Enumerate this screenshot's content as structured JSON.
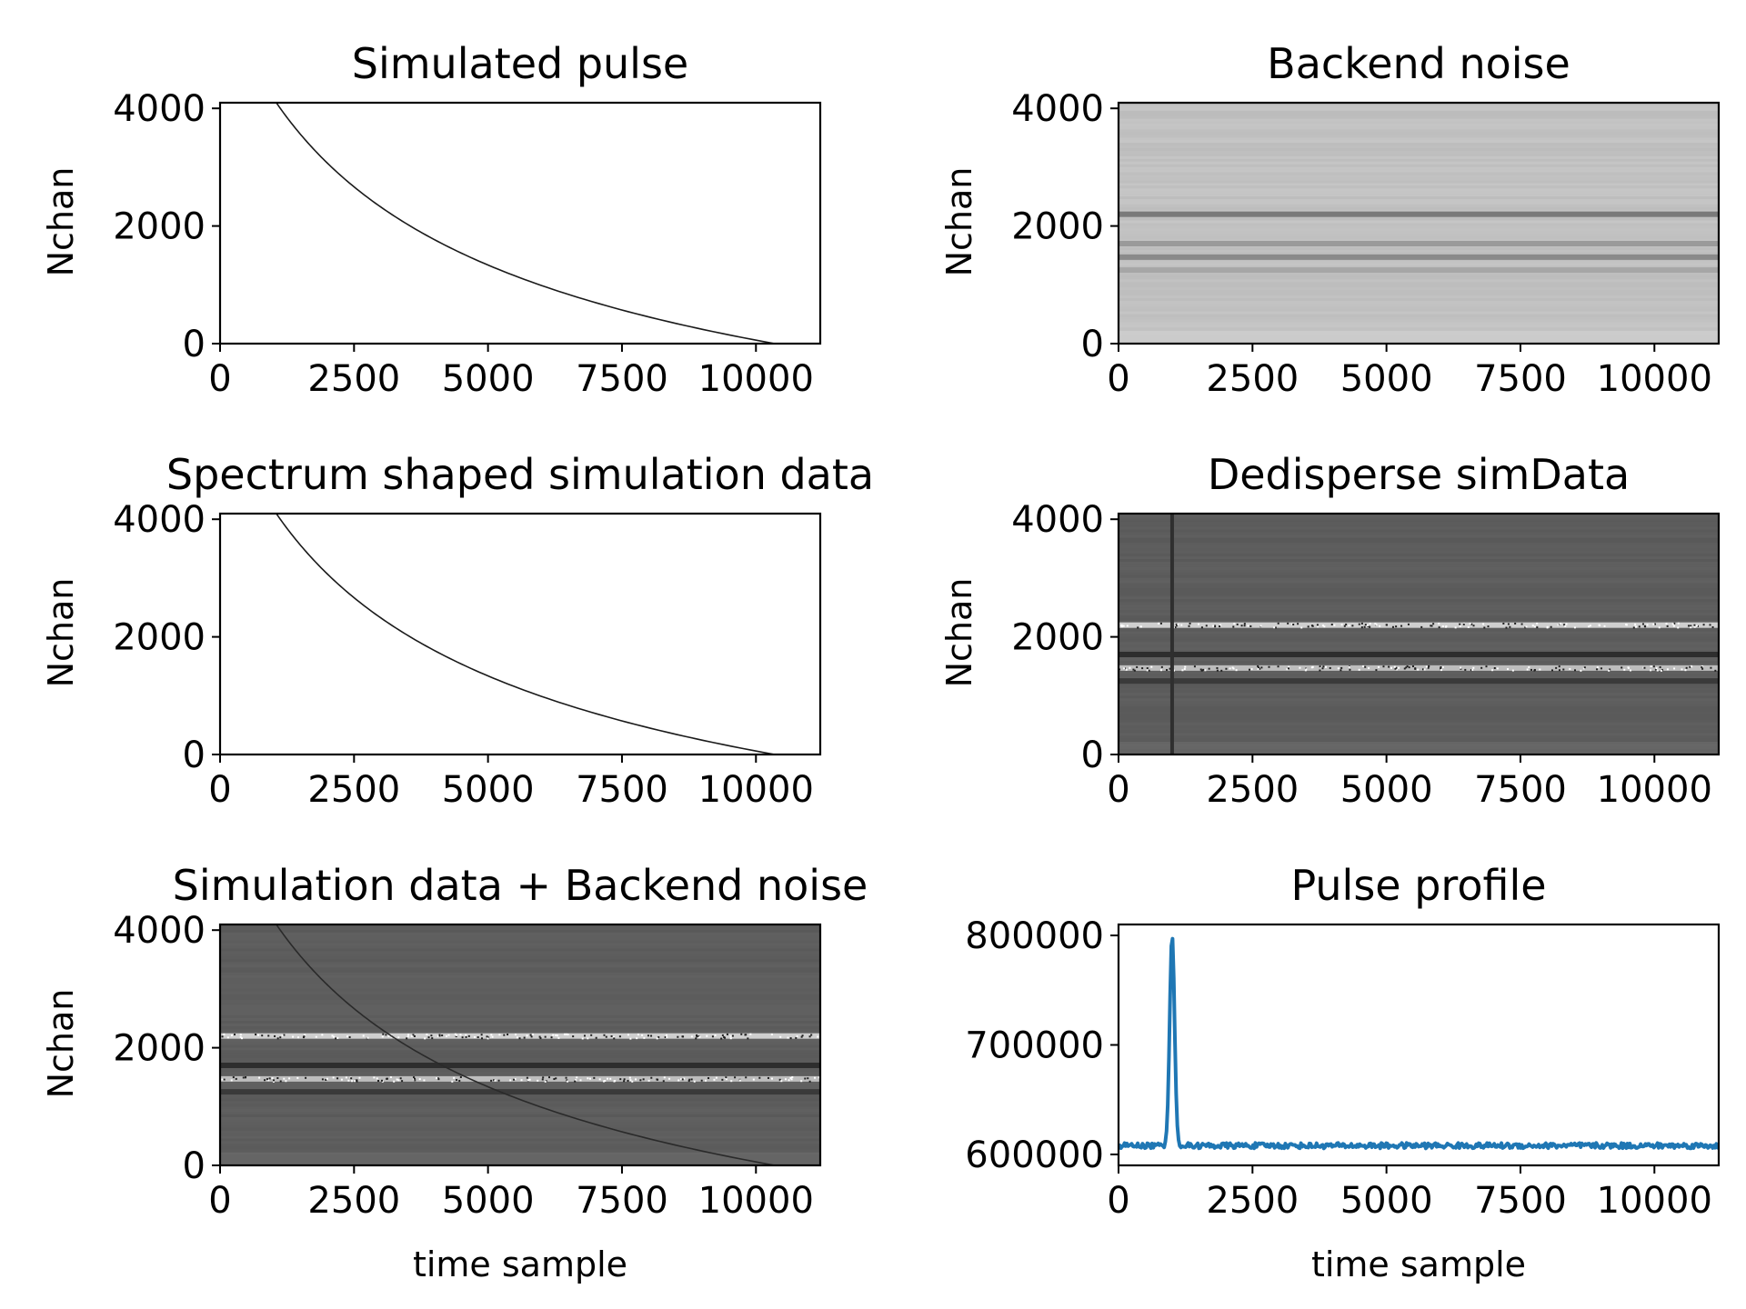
{
  "chart_data": [
    {
      "type": "heatmap",
      "panel": "simulated-pulse",
      "title": "Simulated pulse",
      "xlabel": "",
      "ylabel": "Nchan",
      "xlim": [
        0,
        11200
      ],
      "ylim": [
        0,
        4096
      ],
      "xticks": [
        "0",
        "2500",
        "5000",
        "7500",
        "10000"
      ],
      "yticks": [
        "0",
        "2000",
        "4000"
      ],
      "background": "#ffffff",
      "noise": false,
      "band_rows": [],
      "sweep": {
        "x_top": 1050,
        "x_bottom": 10350,
        "color": "#1a1a1a"
      }
    },
    {
      "type": "heatmap",
      "panel": "backend-noise",
      "title": "Backend noise",
      "xlabel": "",
      "ylabel": "Nchan",
      "xlim": [
        0,
        11200
      ],
      "ylim": [
        0,
        4096
      ],
      "xticks": [
        "0",
        "2500",
        "5000",
        "7500",
        "10000"
      ],
      "yticks": [
        "0",
        "2000",
        "4000"
      ],
      "background": "#c1c1c1",
      "noise": true,
      "band_rows": [
        {
          "chan": 2200,
          "color": "#7a7a7a"
        },
        {
          "chan": 1700,
          "color": "#9a9a9a"
        },
        {
          "chan": 1470,
          "color": "#8a8a8a"
        },
        {
          "chan": 1250,
          "color": "#a6a6a6"
        }
      ]
    },
    {
      "type": "heatmap",
      "panel": "spectrum-shaped",
      "title": "Spectrum shaped simulation data",
      "xlabel": "",
      "ylabel": "Nchan",
      "xlim": [
        0,
        11200
      ],
      "ylim": [
        0,
        4096
      ],
      "xticks": [
        "0",
        "2500",
        "5000",
        "7500",
        "10000"
      ],
      "yticks": [
        "0",
        "2000",
        "4000"
      ],
      "background": "#ffffff",
      "noise": false,
      "band_rows": [],
      "sweep": {
        "x_top": 1050,
        "x_bottom": 10350,
        "color": "#1a1a1a"
      }
    },
    {
      "type": "heatmap",
      "panel": "dedisperse-simdata",
      "title": "Dedisperse simData",
      "xlabel": "",
      "ylabel": "Nchan",
      "xlim": [
        0,
        11200
      ],
      "ylim": [
        0,
        4096
      ],
      "xticks": [
        "0",
        "2500",
        "5000",
        "7500",
        "10000"
      ],
      "yticks": [
        "0",
        "2000",
        "4000"
      ],
      "background": "#5d5d5d",
      "noise": true,
      "band_rows": [
        {
          "chan": 2200,
          "color": "#cfcfcf"
        },
        {
          "chan": 1700,
          "color": "#2e2e2e"
        },
        {
          "chan": 1470,
          "color": "#bdbdbd"
        },
        {
          "chan": 1250,
          "color": "#3a3a3a"
        }
      ],
      "pulse_time": 1000
    },
    {
      "type": "heatmap",
      "panel": "sim-plus-noise",
      "title": "Simulation data + Backend noise",
      "xlabel": "time sample",
      "ylabel": "Nchan",
      "xlim": [
        0,
        11200
      ],
      "ylim": [
        0,
        4096
      ],
      "xticks": [
        "0",
        "2500",
        "5000",
        "7500",
        "10000"
      ],
      "yticks": [
        "0",
        "2000",
        "4000"
      ],
      "background": "#5d5d5d",
      "noise": true,
      "band_rows": [
        {
          "chan": 2200,
          "color": "#cfcfcf"
        },
        {
          "chan": 1700,
          "color": "#2e2e2e"
        },
        {
          "chan": 1470,
          "color": "#bdbdbd"
        },
        {
          "chan": 1250,
          "color": "#3a3a3a"
        }
      ],
      "sweep": {
        "x_top": 1050,
        "x_bottom": 10350,
        "color": "#2a2a2a"
      }
    },
    {
      "type": "line",
      "panel": "pulse-profile",
      "title": "Pulse profile",
      "xlabel": "time sample",
      "ylabel": "",
      "xlim": [
        0,
        11200
      ],
      "ylim": [
        590000,
        810000
      ],
      "xticks": [
        "0",
        "2500",
        "5000",
        "7500",
        "10000"
      ],
      "yticks": [
        "600000",
        "700000",
        "800000"
      ],
      "color": "#1f77b4",
      "baseline": 608000,
      "peak": {
        "x": 1000,
        "y": 800000
      }
    }
  ]
}
